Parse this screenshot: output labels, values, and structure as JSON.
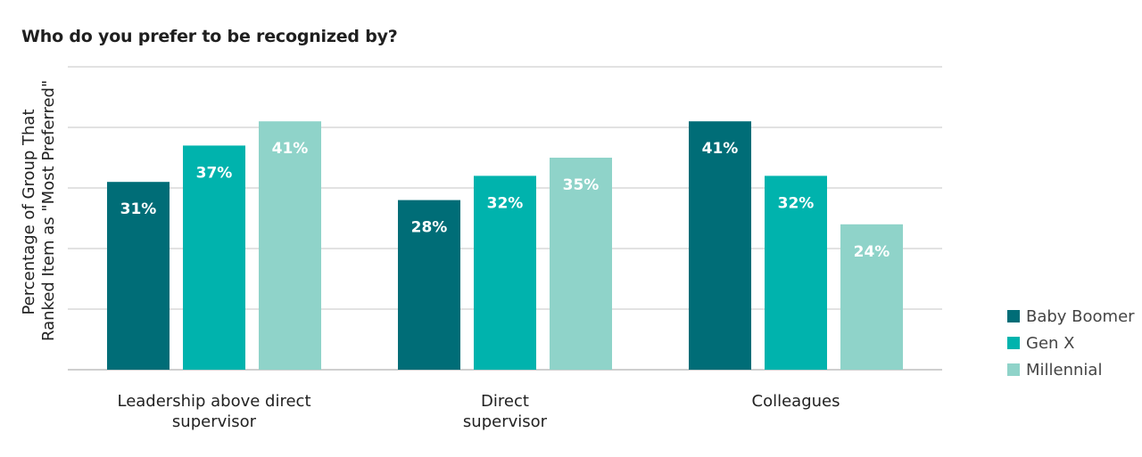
{
  "chart_data": {
    "type": "bar",
    "title": "Who do you prefer to be recognized by?",
    "ylabel": "Percentage of Group That Ranked Item as \"Most Preferred\"",
    "xlabel": "",
    "categories": [
      "Leadership above direct supervisor",
      "Direct supervisor",
      "Colleagues"
    ],
    "category_lines": [
      [
        "Leadership above direct",
        "supervisor"
      ],
      [
        "Direct",
        "supervisor"
      ],
      [
        "Colleagues"
      ]
    ],
    "ylim": [
      0,
      50
    ],
    "grid": true,
    "legend_position": "right",
    "value_suffix": "%",
    "series": [
      {
        "name": "Baby Boomer",
        "values": [
          31,
          28,
          41
        ],
        "color": "#006d77"
      },
      {
        "name": "Gen X",
        "values": [
          37,
          32,
          32
        ],
        "color": "#00b3ad"
      },
      {
        "name": "Millennial",
        "values": [
          41,
          35,
          24
        ],
        "color": "#8fd3c9"
      }
    ]
  }
}
